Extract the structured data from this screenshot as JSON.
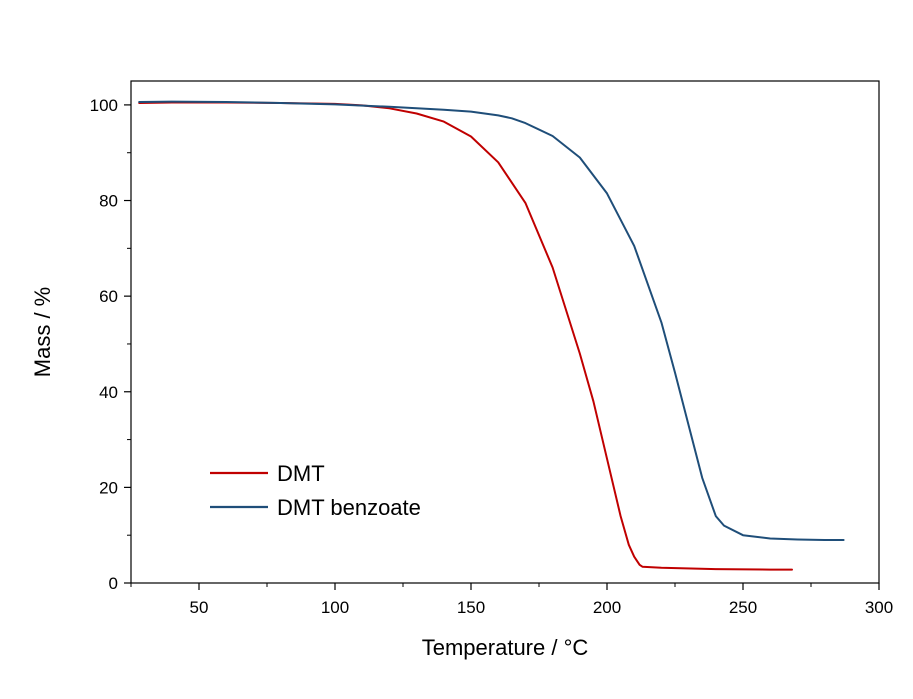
{
  "chart_data": {
    "type": "line",
    "title": "",
    "xlabel": "Temperature / °C",
    "ylabel": "Mass / %",
    "xlim": [
      25,
      300
    ],
    "ylim": [
      0,
      105
    ],
    "x_ticks": [
      50,
      100,
      150,
      200,
      250,
      300
    ],
    "y_ticks": [
      0,
      20,
      40,
      60,
      80,
      100
    ],
    "legend_position": "bottom-left",
    "grid": false,
    "series": [
      {
        "name": "DMT",
        "color": "#c00000",
        "x": [
          28,
          40,
          60,
          80,
          100,
          110,
          120,
          130,
          140,
          150,
          160,
          170,
          180,
          190,
          195,
          200,
          205,
          208,
          210,
          212,
          213,
          220,
          240,
          260,
          268
        ],
        "y": [
          100.4,
          100.5,
          100.5,
          100.4,
          100.2,
          99.9,
          99.3,
          98.2,
          96.5,
          93.4,
          88,
          79.5,
          66,
          48,
          38,
          26,
          14,
          8,
          5.5,
          3.8,
          3.4,
          3.2,
          2.9,
          2.8,
          2.8
        ]
      },
      {
        "name": "DMT benzoate",
        "color": "#1f4e79",
        "x": [
          28,
          40,
          60,
          80,
          100,
          120,
          140,
          150,
          160,
          165,
          170,
          180,
          190,
          200,
          210,
          220,
          225,
          230,
          235,
          240,
          243,
          250,
          260,
          270,
          280,
          287
        ],
        "y": [
          100.6,
          100.7,
          100.6,
          100.4,
          100.1,
          99.6,
          99,
          98.6,
          97.8,
          97.2,
          96.2,
          93.5,
          89,
          81.5,
          70.5,
          54.5,
          44,
          33,
          22,
          14,
          12,
          10,
          9.3,
          9.1,
          9.0,
          9.0
        ]
      }
    ]
  }
}
